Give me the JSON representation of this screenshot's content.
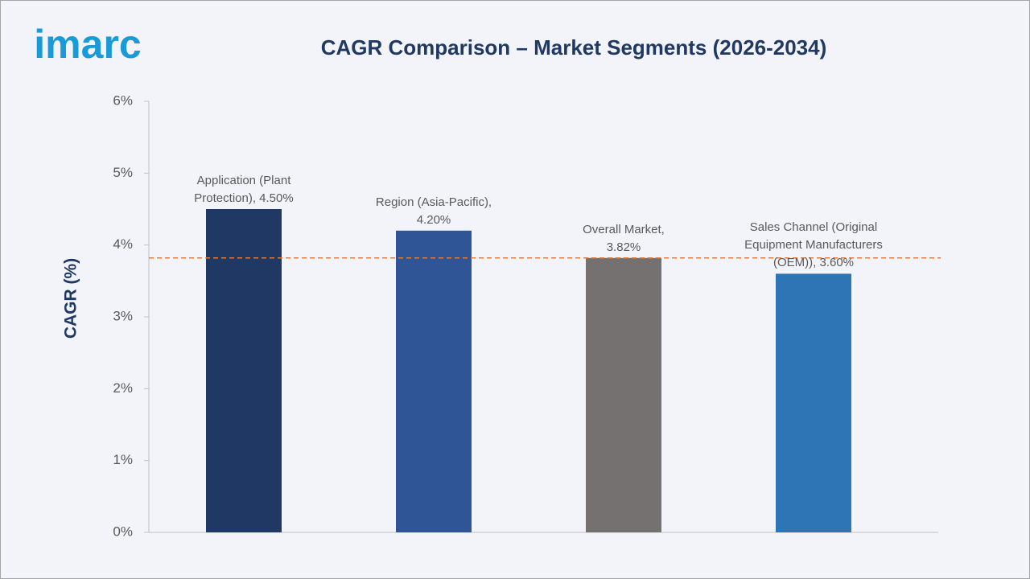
{
  "logo": "imarc",
  "chart_data": {
    "type": "bar",
    "title": "CAGR Comparison – Market Segments (2026-2034)",
    "y_label": "CAGR (%)",
    "values": [
      4.5,
      4.2,
      3.82,
      3.6
    ],
    "value_labels": [
      "Application (Plant Protection), 4.50%",
      "Region (Asia-Pacific), 4.20%",
      "Overall Market, 3.82%",
      "Sales Channel (Original Equipment Manufacturers (OEM)), 3.60%"
    ],
    "colors": [
      "#1f3864",
      "#2f5597",
      "#767171",
      "#2e75b6"
    ],
    "ylim": [
      0,
      6
    ],
    "yticks": [
      {
        "value": 0,
        "label": "0%"
      },
      {
        "value": 1,
        "label": "1%"
      },
      {
        "value": 2,
        "label": "2%"
      },
      {
        "value": 3,
        "label": "3%"
      },
      {
        "value": 4,
        "label": "4%"
      },
      {
        "value": 5,
        "label": "5%"
      },
      {
        "value": 6,
        "label": "6%"
      }
    ],
    "reference_line": {
      "value": 3.82,
      "color": "#e07b39"
    }
  }
}
